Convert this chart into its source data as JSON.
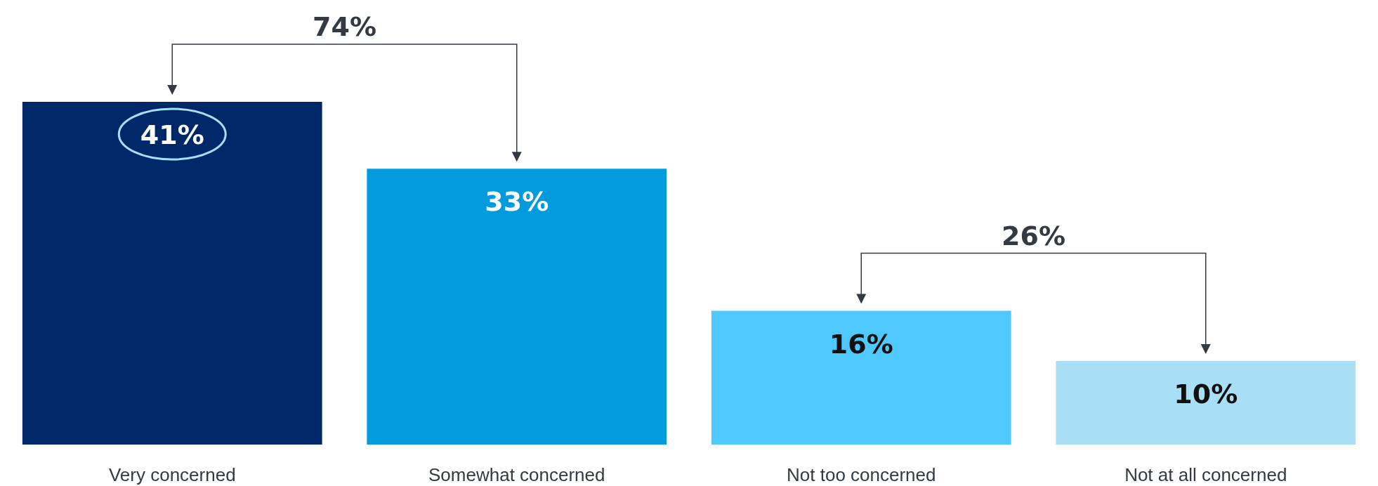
{
  "chart_data": {
    "type": "bar",
    "categories": [
      "Very concerned",
      "Somewhat concerned",
      "Not too concerned",
      "Not at all concerned"
    ],
    "values": [
      41,
      33,
      16,
      10
    ],
    "colors": [
      "#002868",
      "#039ade",
      "#4fc9fd",
      "#a8dff5"
    ],
    "value_labels": [
      "41%",
      "33%",
      "16%",
      "10%"
    ],
    "annotations": [
      "74%",
      "26%"
    ]
  }
}
